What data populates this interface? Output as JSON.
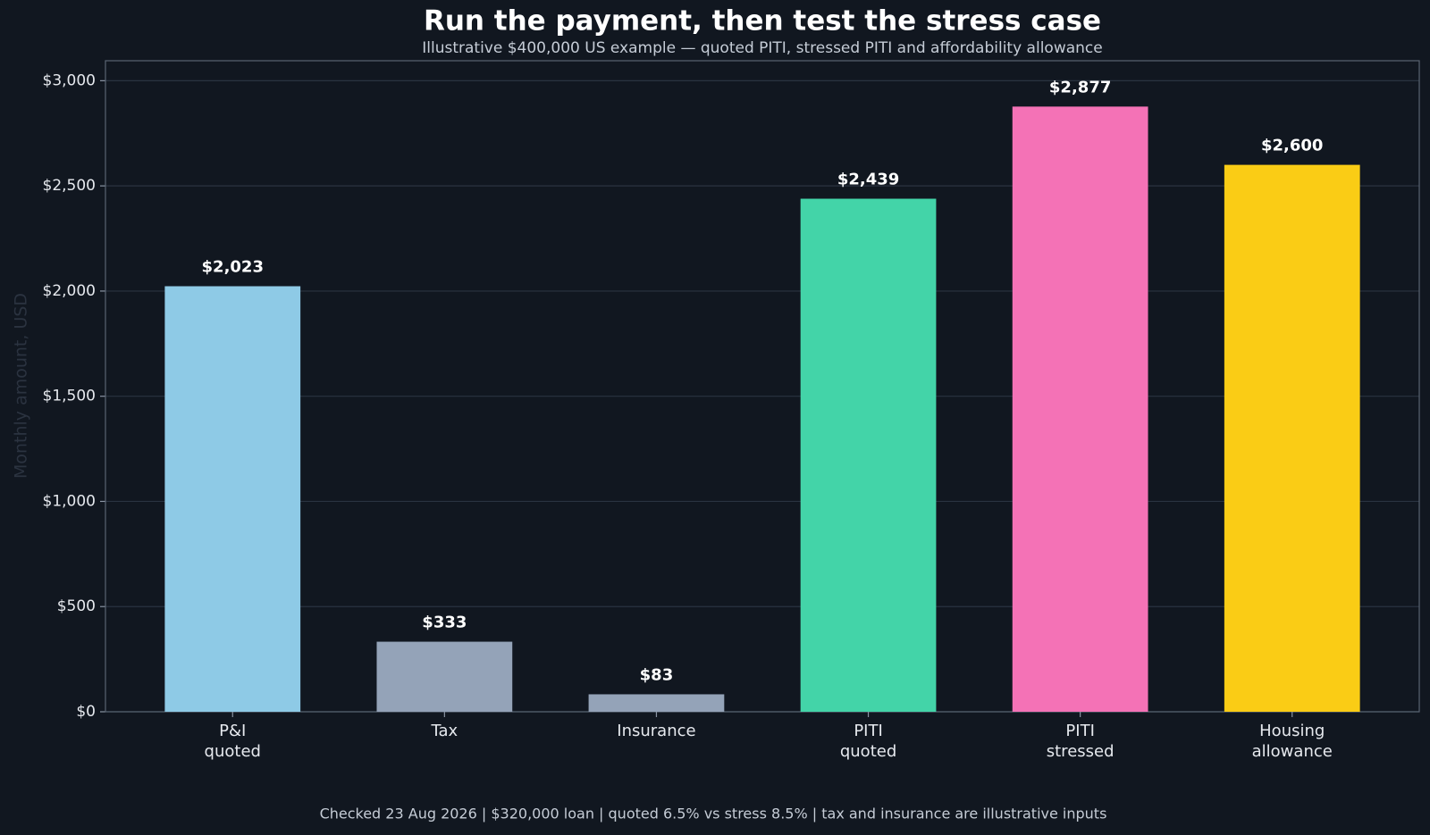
{
  "chart_data": {
    "type": "bar",
    "title": "Run the payment, then test the stress case",
    "subtitle": "Illustrative $400,000 US example — quoted PITI, stressed PITI and affordability allowance",
    "y_label": "Monthly amount, USD",
    "footer": "Checked 23 Aug 2026 | $320,000 loan | quoted 6.5% vs stress 8.5% | tax and insurance are illustrative inputs",
    "categories": [
      "P&I\nquoted",
      "Tax",
      "Insurance",
      "PITI\nquoted",
      "PITI\nstressed",
      "Housing\nallowance"
    ],
    "values": [
      2023,
      333,
      83,
      2439,
      2877,
      2600
    ],
    "value_labels": [
      "$2,023",
      "$333",
      "$83",
      "$2,439",
      "$2,877",
      "$2,600"
    ],
    "colors": [
      "#8ecae6",
      "#94a3b8",
      "#94a3b8",
      "#43d4a8",
      "#f472b6",
      "#facc15"
    ],
    "ylim": [
      0,
      3095
    ],
    "yticks": [
      {
        "value": 0,
        "label": "$0"
      },
      {
        "value": 500,
        "label": "$500"
      },
      {
        "value": 1000,
        "label": "$1,000"
      },
      {
        "value": 1500,
        "label": "$1,500"
      },
      {
        "value": 2000,
        "label": "$2,000"
      },
      {
        "value": 2500,
        "label": "$2,500"
      },
      {
        "value": 3000,
        "label": "$3,000"
      }
    ],
    "grid": true
  }
}
